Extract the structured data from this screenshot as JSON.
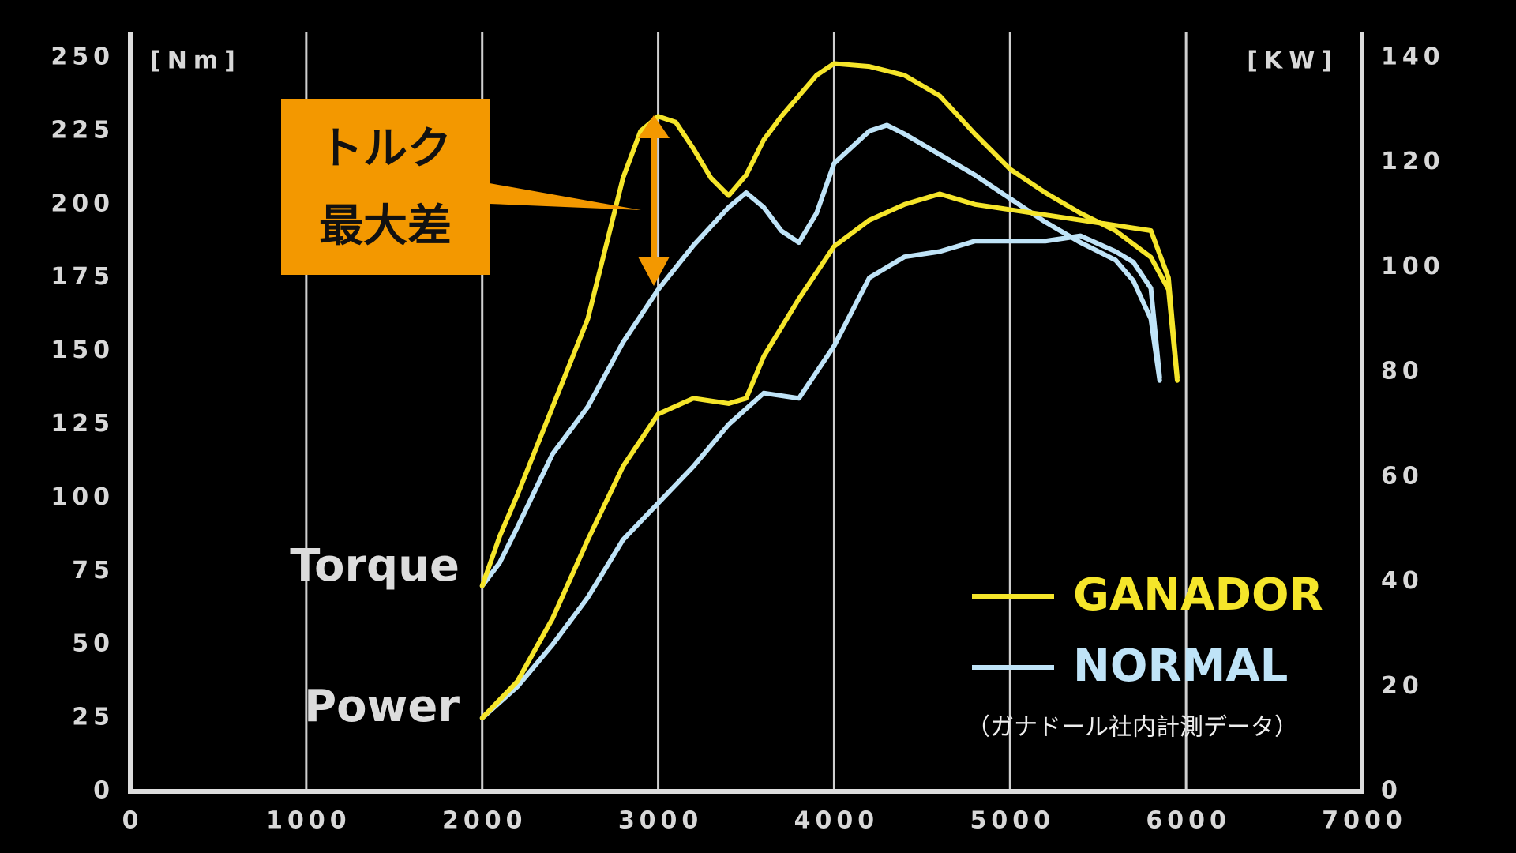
{
  "chart_data": {
    "type": "line",
    "y_label": "[Nm]",
    "y2_label": "[KW]",
    "xlim": [
      0,
      7000
    ],
    "xticks": [
      0,
      1000,
      2000,
      3000,
      4000,
      5000,
      6000,
      7000
    ],
    "ylim": [
      0,
      250
    ],
    "yticks": [
      0,
      25,
      50,
      75,
      100,
      125,
      150,
      175,
      200,
      225,
      250
    ],
    "y2lim": [
      0,
      140
    ],
    "y2ticks": [
      0,
      20,
      40,
      60,
      80,
      100,
      120,
      140
    ],
    "grid": true,
    "series": [
      {
        "name": "GANADOR",
        "color": "#f5e52a",
        "torque": {
          "x": [
            2000,
            2100,
            2200,
            2400,
            2600,
            2800,
            2900,
            3000,
            3100,
            3200,
            3300,
            3400,
            3500,
            3600,
            3700,
            3800,
            3900,
            4000,
            4200,
            4400,
            4600,
            4800,
            5000,
            5200,
            5400,
            5600,
            5800,
            5900,
            5950
          ],
          "values": [
            70,
            87,
            101,
            131,
            161,
            209,
            225,
            230,
            228,
            219,
            209,
            203,
            210,
            222,
            230,
            237,
            244,
            248,
            247,
            244,
            237,
            224,
            212,
            204,
            197,
            191,
            182,
            171,
            140
          ]
        },
        "power": {
          "x": [
            2000,
            2200,
            2400,
            2600,
            2800,
            3000,
            3200,
            3400,
            3500,
            3600,
            3800,
            4000,
            4200,
            4400,
            4600,
            4800,
            5000,
            5200,
            5400,
            5600,
            5800,
            5900,
            5950
          ],
          "values": [
            14,
            21,
            33,
            48,
            62,
            72,
            75,
            74,
            75,
            83,
            94,
            104,
            109,
            112,
            114,
            112,
            111,
            110,
            109,
            108,
            107,
            98,
            79
          ]
        }
      },
      {
        "name": "NORMAL",
        "color": "#bfe3f7",
        "torque": {
          "x": [
            2000,
            2100,
            2200,
            2400,
            2600,
            2800,
            3000,
            3200,
            3400,
            3500,
            3600,
            3700,
            3800,
            3900,
            4000,
            4200,
            4300,
            4400,
            4600,
            4800,
            5000,
            5200,
            5400,
            5600,
            5700,
            5800,
            5850
          ],
          "values": [
            70,
            78,
            90,
            115,
            131,
            153,
            171,
            186,
            199,
            204,
            199,
            191,
            187,
            197,
            214,
            225,
            227,
            224,
            217,
            210,
            202,
            194,
            187,
            181,
            174,
            161,
            140
          ]
        },
        "power": {
          "x": [
            2000,
            2200,
            2400,
            2600,
            2800,
            3000,
            3200,
            3400,
            3600,
            3800,
            4000,
            4200,
            4400,
            4600,
            4800,
            5000,
            5200,
            5400,
            5600,
            5700,
            5800,
            5850
          ],
          "values": [
            14,
            20,
            28,
            37,
            48,
            55,
            62,
            70,
            76,
            75,
            85,
            98,
            102,
            103,
            105,
            105,
            105,
            106,
            103,
            101,
            96,
            79
          ]
        }
      }
    ],
    "annotations": {
      "torque_label": "Torque",
      "power_label": "Power",
      "box_line1": "トルク",
      "box_line2": "最大差",
      "note": "（ガナドール社内計測データ）"
    }
  }
}
